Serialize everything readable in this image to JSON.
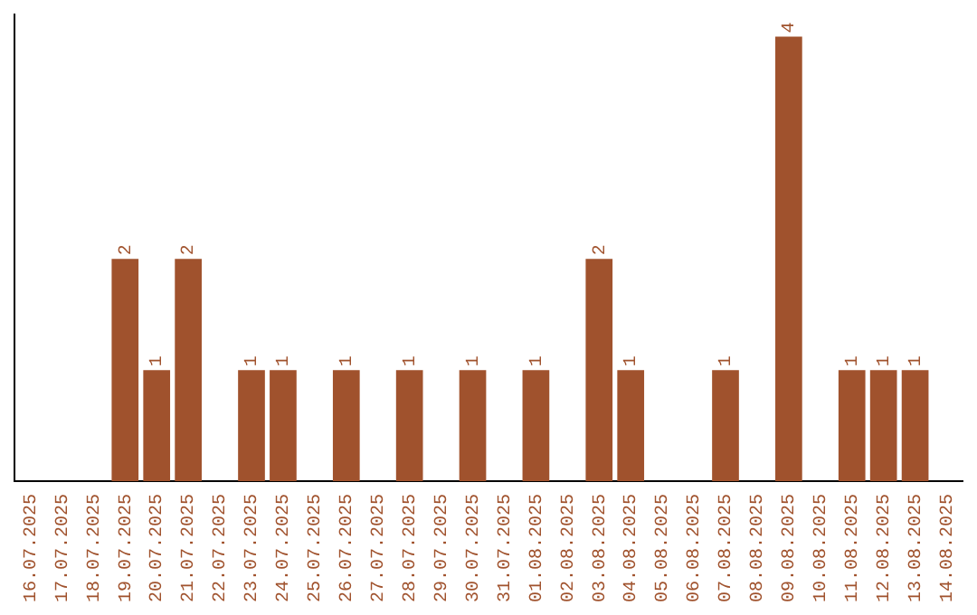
{
  "chart_data": {
    "type": "bar",
    "categories": [
      "16.07.2025",
      "17.07.2025",
      "18.07.2025",
      "19.07.2025",
      "20.07.2025",
      "21.07.2025",
      "22.07.2025",
      "23.07.2025",
      "24.07.2025",
      "25.07.2025",
      "26.07.2025",
      "27.07.2025",
      "28.07.2025",
      "29.07.2025",
      "30.07.2025",
      "31.07.2025",
      "01.08.2025",
      "02.08.2025",
      "03.08.2025",
      "04.08.2025",
      "05.08.2025",
      "06.08.2025",
      "07.08.2025",
      "08.08.2025",
      "09.08.2025",
      "10.08.2025",
      "11.08.2025",
      "12.08.2025",
      "13.08.2025",
      "14.08.2025"
    ],
    "values": [
      null,
      null,
      null,
      2,
      1,
      2,
      null,
      1,
      1,
      null,
      1,
      null,
      1,
      null,
      1,
      null,
      1,
      null,
      2,
      1,
      null,
      null,
      1,
      null,
      4,
      null,
      1,
      1,
      1,
      null
    ],
    "color": "#a0522d",
    "ylim": [
      0,
      4.2
    ],
    "data_labels": true,
    "grid": false,
    "legend": false,
    "tick_labels": "x"
  }
}
